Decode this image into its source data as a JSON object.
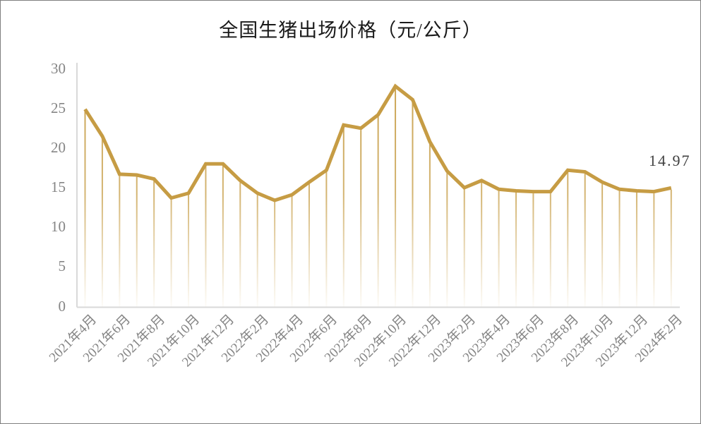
{
  "title": "全国生猪出场价格（元/公斤）",
  "annotation": {
    "last_value_label": "14.97"
  },
  "chart_data": {
    "type": "line",
    "title": "全国生猪出场价格（元/公斤）",
    "xlabel": "",
    "ylabel": "",
    "categories": [
      "2021年4月",
      "2021年5月",
      "2021年6月",
      "2021年7月",
      "2021年8月",
      "2021年9月",
      "2021年10月",
      "2021年11月",
      "2021年12月",
      "2022年1月",
      "2022年2月",
      "2022年3月",
      "2022年4月",
      "2022年5月",
      "2022年6月",
      "2022年7月",
      "2022年8月",
      "2022年9月",
      "2022年10月",
      "2022年11月",
      "2022年12月",
      "2023年1月",
      "2023年2月",
      "2023年3月",
      "2023年4月",
      "2023年5月",
      "2023年6月",
      "2023年7月",
      "2023年8月",
      "2023年9月",
      "2023年10月",
      "2023年11月",
      "2023年12月",
      "2024年1月",
      "2024年2月"
    ],
    "values": [
      24.9,
      21.5,
      16.7,
      16.6,
      16.1,
      13.7,
      14.3,
      18.0,
      18.0,
      15.9,
      14.3,
      13.4,
      14.1,
      15.7,
      17.2,
      22.9,
      22.5,
      24.2,
      27.8,
      26.1,
      20.8,
      17.1,
      15.0,
      15.9,
      14.8,
      14.6,
      14.5,
      14.5,
      17.2,
      17.0,
      15.7,
      14.8,
      14.6,
      14.5,
      14.97
    ],
    "x_tick_labels": [
      "2021年4月",
      "2021年6月",
      "2021年8月",
      "2021年10月",
      "2021年12月",
      "2022年2月",
      "2022年4月",
      "2022年6月",
      "2022年8月",
      "2022年10月",
      "2022年12月",
      "2023年2月",
      "2023年4月",
      "2023年6月",
      "2023年8月",
      "2023年10月",
      "2023年12月",
      "2024年2月"
    ],
    "x_tick_every": 2,
    "yticks": [
      0,
      5,
      10,
      15,
      20,
      25,
      30
    ],
    "ylim": [
      0,
      30
    ],
    "data_labels": [
      {
        "index": 34,
        "text": "14.97"
      }
    ],
    "legend": "none",
    "grid": "off",
    "line_color": "#C69C44",
    "dropline_color": "#C9A24F",
    "axis_line_color": "#D9D9D9",
    "tick_label_color": "#858585",
    "title_color": "#1a1a1a",
    "data_label_color": "#404040"
  }
}
